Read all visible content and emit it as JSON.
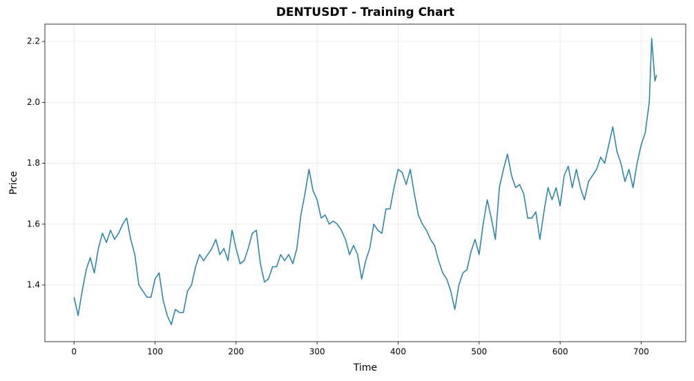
{
  "chart_data": {
    "type": "line",
    "title": "DENTUSDT - Training Chart",
    "x_label": "Time",
    "y_label": "Price",
    "color": "#2e86ab",
    "grid": true,
    "x": [
      0,
      5,
      10,
      15,
      20,
      25,
      30,
      35,
      40,
      45,
      50,
      55,
      60,
      65,
      70,
      75,
      80,
      85,
      90,
      95,
      100,
      105,
      110,
      115,
      120,
      125,
      130,
      135,
      140,
      145,
      150,
      155,
      160,
      165,
      170,
      175,
      180,
      185,
      190,
      195,
      200,
      205,
      210,
      215,
      220,
      225,
      230,
      235,
      240,
      245,
      250,
      255,
      260,
      265,
      270,
      275,
      280,
      285,
      290,
      295,
      300,
      305,
      310,
      315,
      320,
      325,
      330,
      335,
      340,
      345,
      350,
      355,
      360,
      365,
      370,
      375,
      380,
      385,
      390,
      395,
      400,
      405,
      410,
      415,
      420,
      425,
      430,
      435,
      440,
      445,
      450,
      455,
      460,
      465,
      470,
      475,
      480,
      485,
      490,
      495,
      500,
      505,
      510,
      515,
      520,
      525,
      530,
      535,
      540,
      545,
      550,
      555,
      560,
      565,
      570,
      575,
      580,
      585,
      590,
      595,
      600,
      605,
      610,
      615,
      620,
      625,
      630,
      635,
      640,
      645,
      650,
      655,
      660,
      665,
      670,
      675,
      680,
      685,
      690,
      695,
      700,
      705,
      710,
      713,
      717,
      719
    ],
    "values": [
      1.36,
      1.3,
      1.38,
      1.45,
      1.49,
      1.44,
      1.52,
      1.57,
      1.54,
      1.58,
      1.55,
      1.57,
      1.6,
      1.62,
      1.55,
      1.5,
      1.4,
      1.38,
      1.36,
      1.36,
      1.42,
      1.44,
      1.35,
      1.3,
      1.27,
      1.32,
      1.31,
      1.31,
      1.38,
      1.4,
      1.46,
      1.5,
      1.48,
      1.5,
      1.52,
      1.55,
      1.5,
      1.52,
      1.48,
      1.58,
      1.52,
      1.47,
      1.48,
      1.52,
      1.57,
      1.58,
      1.47,
      1.41,
      1.42,
      1.46,
      1.46,
      1.5,
      1.48,
      1.5,
      1.47,
      1.52,
      1.63,
      1.7,
      1.78,
      1.71,
      1.68,
      1.62,
      1.63,
      1.6,
      1.61,
      1.6,
      1.58,
      1.55,
      1.5,
      1.53,
      1.5,
      1.42,
      1.48,
      1.52,
      1.6,
      1.58,
      1.57,
      1.65,
      1.65,
      1.72,
      1.78,
      1.77,
      1.73,
      1.78,
      1.7,
      1.63,
      1.6,
      1.58,
      1.55,
      1.53,
      1.48,
      1.44,
      1.42,
      1.38,
      1.32,
      1.4,
      1.44,
      1.45,
      1.51,
      1.55,
      1.5,
      1.6,
      1.68,
      1.62,
      1.55,
      1.72,
      1.78,
      1.83,
      1.76,
      1.72,
      1.73,
      1.7,
      1.62,
      1.62,
      1.64,
      1.55,
      1.64,
      1.72,
      1.68,
      1.72,
      1.66,
      1.76,
      1.79,
      1.72,
      1.78,
      1.72,
      1.68,
      1.74,
      1.76,
      1.78,
      1.82,
      1.8,
      1.86,
      1.92,
      1.84,
      1.8,
      1.74,
      1.78,
      1.72,
      1.8,
      1.86,
      1.9,
      2.0,
      2.21,
      2.07,
      2.09
    ],
    "xlim": [
      -36,
      755
    ],
    "ylim": [
      1.214,
      2.257
    ],
    "xticks": [
      0,
      100,
      200,
      300,
      400,
      500,
      600,
      700
    ],
    "yticks": [
      1.4,
      1.6,
      1.8,
      {
        "value": 2,
        "label": "2.0"
      },
      2.2
    ]
  }
}
